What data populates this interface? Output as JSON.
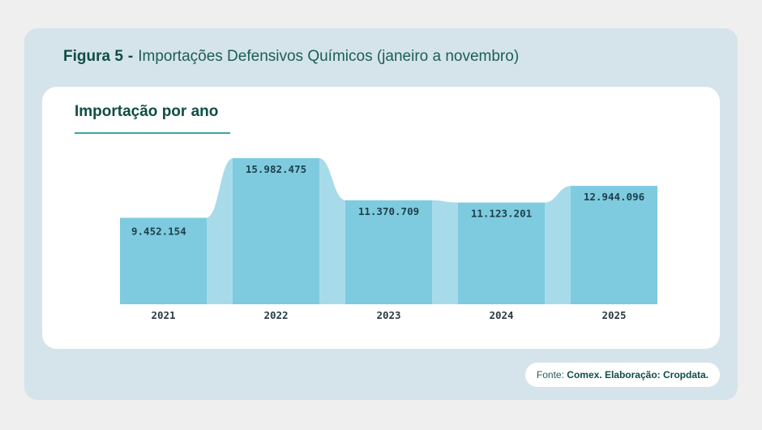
{
  "figure": {
    "number": "Figura 5",
    "separator": "-",
    "title": "Importações Defensivos Químicos (janeiro a novembro)"
  },
  "panel": {
    "title": "Importação por ano"
  },
  "chart_data": {
    "type": "bar",
    "title": "Importação por ano",
    "xlabel": "",
    "ylabel": "",
    "categories": [
      "2021",
      "2022",
      "2023",
      "2024",
      "2025"
    ],
    "values": [
      9452154,
      15982475,
      11370709,
      11123201,
      12944096
    ],
    "value_labels": [
      "9.452.154",
      "15.982.475",
      "11.370.709",
      "11.123.201",
      "12.944.096"
    ],
    "ylim": [
      0,
      16500000
    ],
    "grid": false,
    "legend": "none"
  },
  "source": {
    "prefix": "Fonte:",
    "text": "Comex. Elaboração: Cropdata."
  },
  "colors": {
    "bar": "#7ecbe0",
    "connector": "#a8dbea",
    "card_bg": "#d5e4ea",
    "accent": "#0f4d44"
  }
}
